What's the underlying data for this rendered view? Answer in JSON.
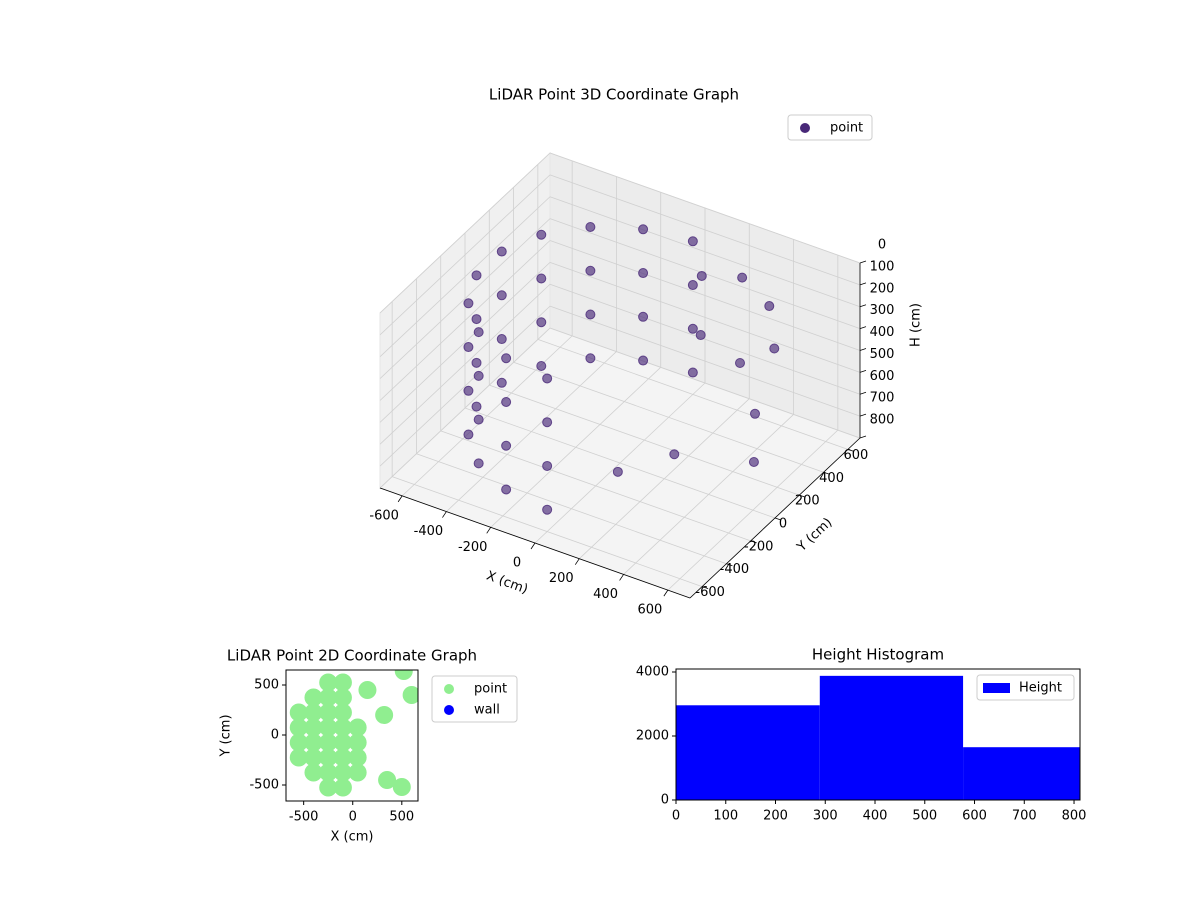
{
  "chart_data": [
    {
      "type": "scatter3d",
      "title": "LiDAR Point 3D Coordinate Graph",
      "xlabel": "X (cm)",
      "ylabel": "Y (cm)",
      "zlabel": "H (cm)",
      "xlim": [
        -700,
        700
      ],
      "ylim": [
        -700,
        700
      ],
      "zlim": [
        800,
        0
      ],
      "xticks": [
        -600,
        -400,
        -200,
        0,
        200,
        400,
        600
      ],
      "yticks": [
        -600,
        -400,
        -200,
        0,
        200,
        400,
        600
      ],
      "zticks": [
        0,
        100,
        200,
        300,
        400,
        500,
        600,
        700,
        800
      ],
      "grid": true,
      "legend": "upper right",
      "series": [
        {
          "name": "point",
          "color": "#482878",
          "x": [
            0,
            0,
            0,
            0,
            -205,
            -205,
            -205,
            -205,
            -386,
            -386,
            -386,
            -386,
            -520,
            -520,
            -520,
            -520,
            -591,
            -591,
            -591,
            -591,
            -591,
            -591,
            -591,
            -591,
            -520,
            -520,
            -520,
            -520,
            -386,
            -386,
            -386,
            -386,
            -205,
            -205,
            -205,
            -205,
            0,
            0,
            0,
            0,
            150,
            200,
            350,
            500,
            550,
            400,
            100,
            300,
            250,
            450
          ],
          "y": [
            600,
            600,
            600,
            600,
            564,
            564,
            564,
            564,
            460,
            460,
            460,
            460,
            300,
            300,
            300,
            300,
            104,
            104,
            104,
            104,
            -104,
            -104,
            -104,
            -104,
            -300,
            -300,
            -300,
            -300,
            -460,
            -460,
            -460,
            -460,
            -564,
            -564,
            -564,
            -564,
            -600,
            -600,
            -600,
            -600,
            400,
            300,
            350,
            200,
            100,
            500,
            -200,
            -100,
            550,
            450
          ],
          "z": [
            100,
            300,
            500,
            700,
            100,
            300,
            500,
            700,
            100,
            300,
            500,
            700,
            100,
            300,
            500,
            700,
            100,
            300,
            500,
            700,
            100,
            300,
            500,
            700,
            100,
            300,
            500,
            700,
            100,
            300,
            500,
            700,
            100,
            300,
            500,
            700,
            100,
            300,
            500,
            700,
            100,
            300,
            400,
            500,
            650,
            200,
            700,
            600,
            150,
            350
          ]
        }
      ]
    },
    {
      "type": "scatter",
      "title": "LiDAR Point 2D Coordinate Graph",
      "xlabel": "X (cm)",
      "ylabel": "Y (cm)",
      "xlim": [
        -680,
        665
      ],
      "ylim": [
        -660,
        650
      ],
      "xticks": [
        -500,
        0,
        500
      ],
      "yticks": [
        -500,
        0,
        500
      ],
      "legend": "outside upper right",
      "series": [
        {
          "name": "point",
          "color": "#90ee90",
          "x": [
            -550,
            -550,
            -550,
            -550,
            -400,
            -400,
            -400,
            -400,
            -400,
            -400,
            -250,
            -250,
            -250,
            -250,
            -250,
            -250,
            -250,
            -250,
            -100,
            -100,
            -100,
            -100,
            -100,
            -100,
            -100,
            -100,
            50,
            50,
            50,
            50,
            350,
            500,
            150,
            320,
            600,
            520
          ],
          "y": [
            -225,
            -75,
            75,
            225,
            -375,
            -225,
            -75,
            75,
            225,
            375,
            -525,
            -375,
            -225,
            -75,
            75,
            225,
            375,
            525,
            -525,
            -375,
            -225,
            -75,
            75,
            225,
            375,
            525,
            -375,
            -225,
            -75,
            75,
            -450,
            -520,
            450,
            200,
            400,
            640
          ]
        },
        {
          "name": "wall",
          "color": "#0000ff",
          "x": [],
          "y": []
        }
      ]
    },
    {
      "type": "histogram",
      "title": "Height Histogram",
      "bins": [
        0,
        289,
        577,
        812
      ],
      "xlim": [
        0,
        812
      ],
      "ylim": [
        0,
        4094
      ],
      "xticks": [
        0,
        100,
        200,
        300,
        400,
        500,
        600,
        700,
        800
      ],
      "yticks": [
        0,
        2000,
        4000
      ],
      "legend": "upper right",
      "series": [
        {
          "name": "Height",
          "color": "#0000ff",
          "values": [
            2960,
            3880,
            1650
          ]
        }
      ]
    }
  ]
}
